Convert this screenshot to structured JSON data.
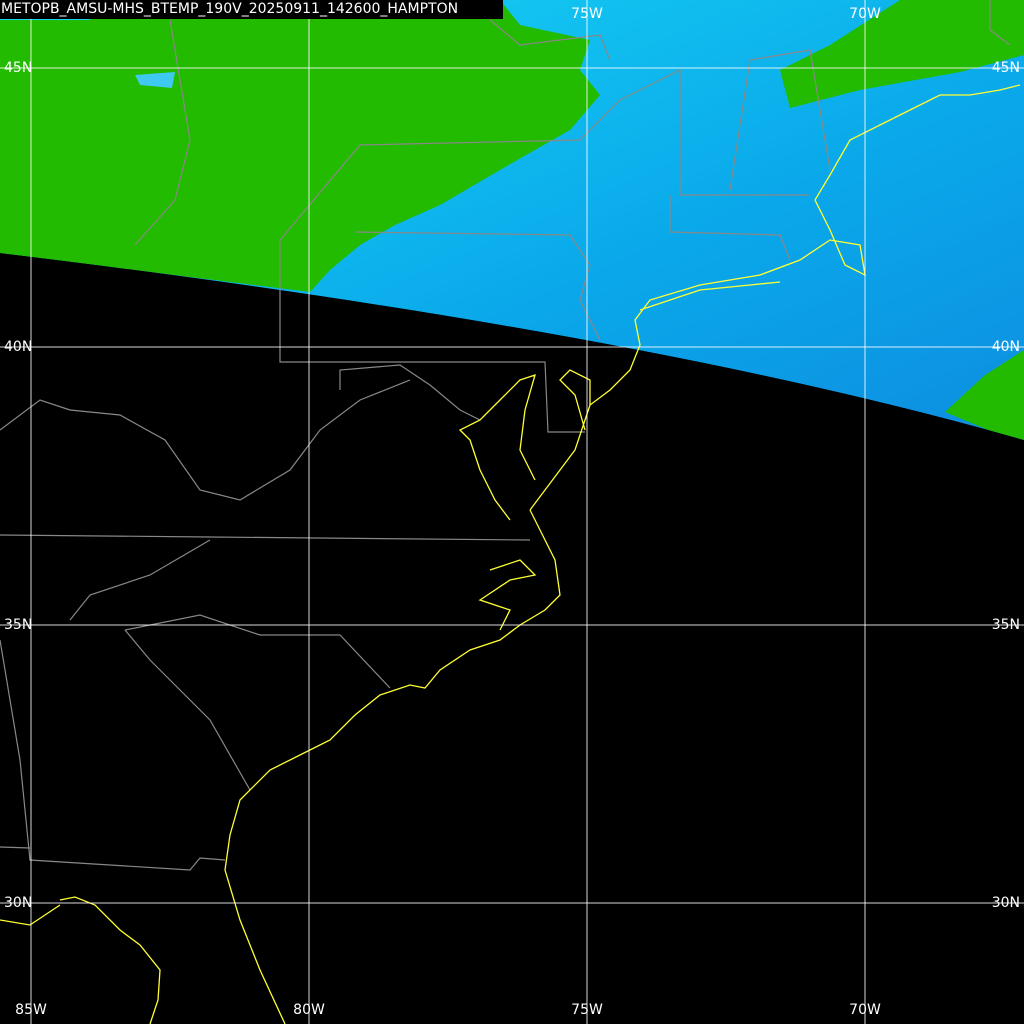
{
  "title": "METOPB_AMSU-MHS_BTEMP_190V_20250911_142600_HAMPTON",
  "lat_labels": [
    "45N",
    "40N",
    "35N",
    "30N"
  ],
  "lon_labels_top": [
    "75W",
    "70W"
  ],
  "lon_labels_bottom": [
    "85W",
    "80W",
    "75W",
    "70W"
  ]
}
